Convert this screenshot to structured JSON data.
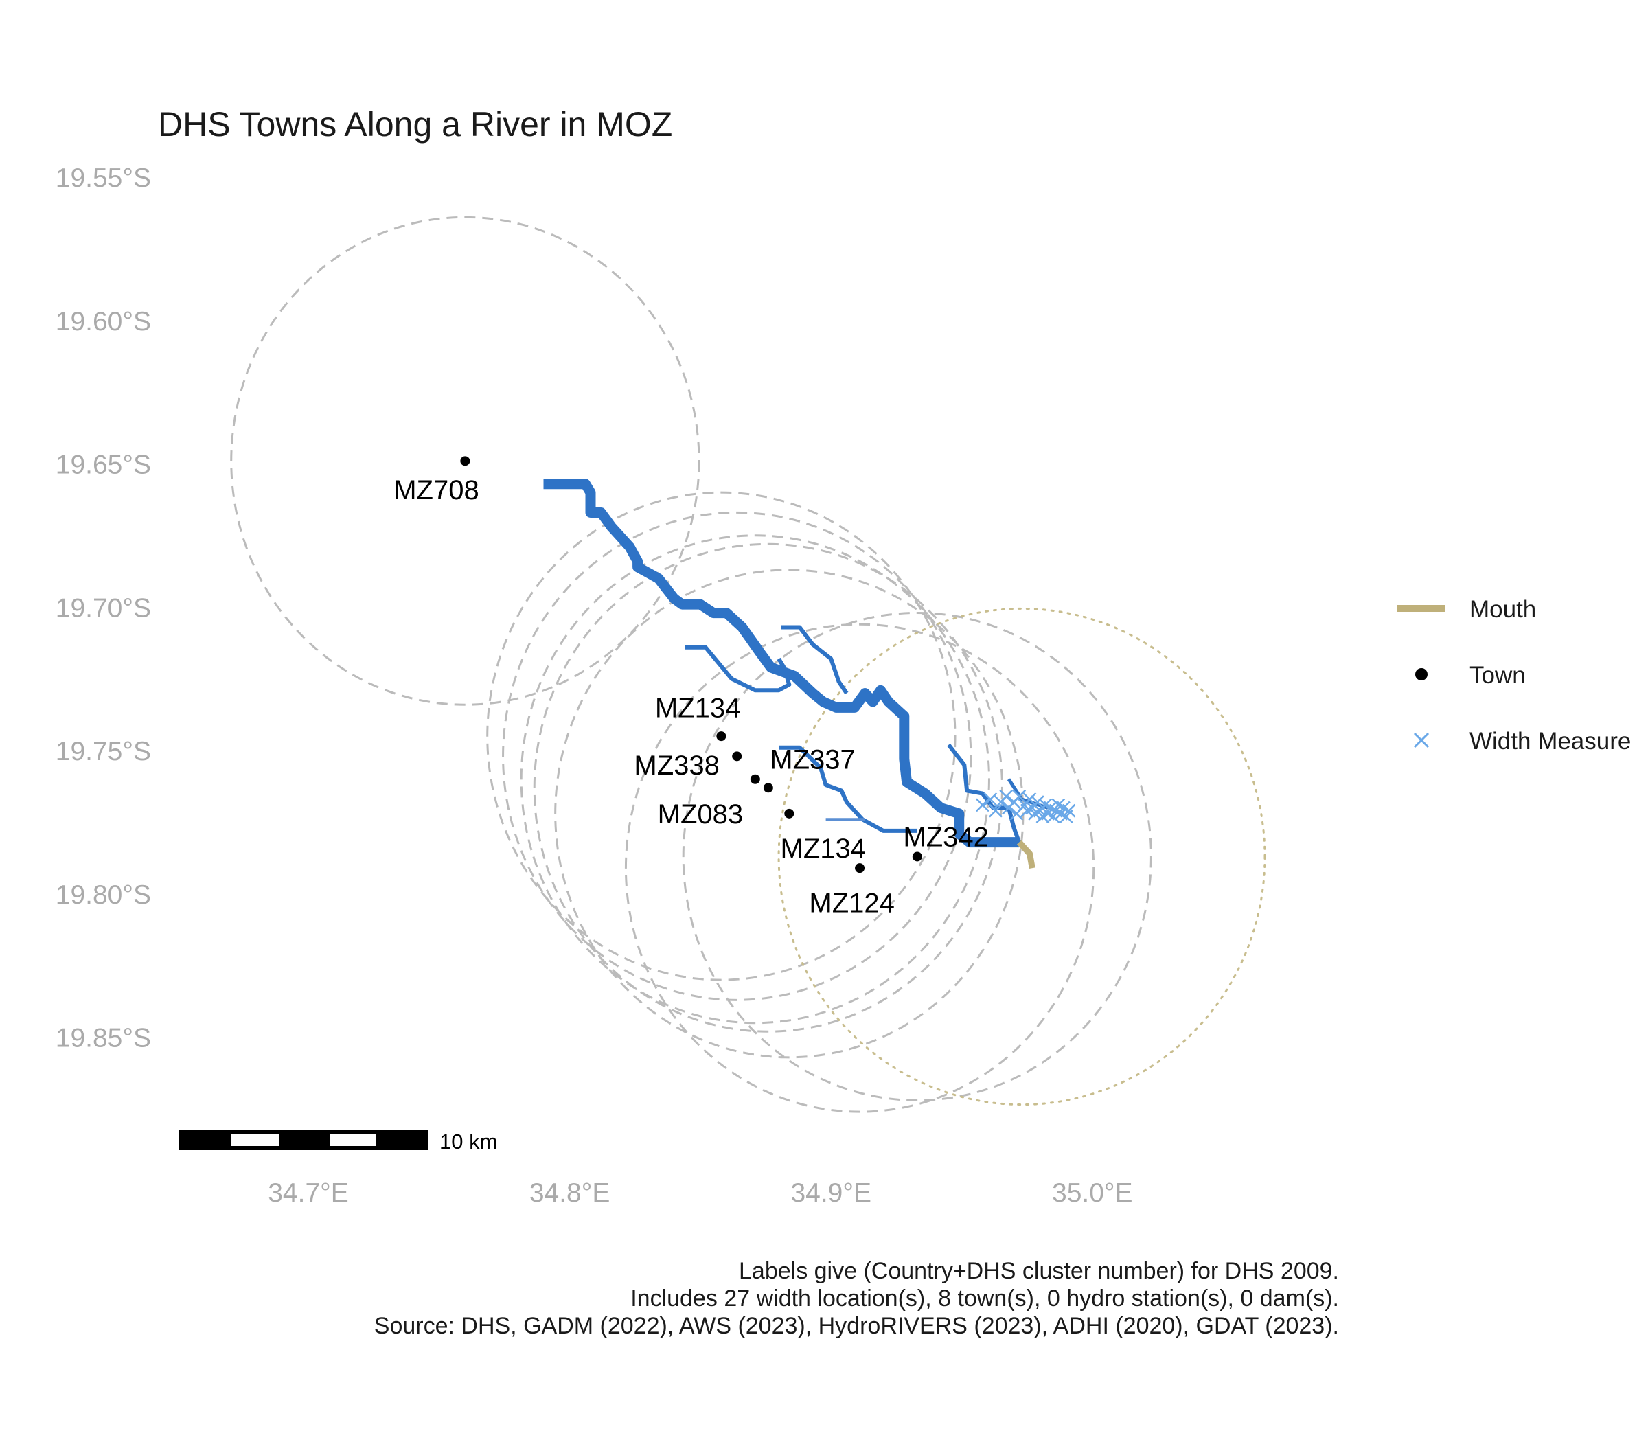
{
  "title": "DHS Towns Along a River in MOZ",
  "axes": {
    "x_ticks": [
      {
        "value": 34.7,
        "label": "34.7°E"
      },
      {
        "value": 34.8,
        "label": "34.8°E"
      },
      {
        "value": 34.9,
        "label": "34.9°E"
      },
      {
        "value": 35.0,
        "label": "35.0°E"
      }
    ],
    "y_ticks": [
      {
        "value": -19.55,
        "label": "19.55°S"
      },
      {
        "value": -19.6,
        "label": "19.60°S"
      },
      {
        "value": -19.65,
        "label": "19.65°S"
      },
      {
        "value": -19.7,
        "label": "19.70°S"
      },
      {
        "value": -19.75,
        "label": "19.75°S"
      },
      {
        "value": -19.8,
        "label": "19.80°S"
      },
      {
        "value": -19.85,
        "label": "19.85°S"
      }
    ]
  },
  "colors": {
    "river": "#2e73c6",
    "river_thin": "#5b8fd4",
    "mouth": "#bfb07a",
    "town": "#000000",
    "width_measure": "#6aa8e8",
    "buffer": "#bbbbbb",
    "mouth_buffer": "#c8bd8e"
  },
  "towns": [
    {
      "label": "MZ708",
      "lon": 34.76,
      "lat": -19.649,
      "label_lon": 34.749,
      "label_lat": -19.659
    },
    {
      "label": "MZ134",
      "lon": 34.858,
      "lat": -19.745,
      "label_lon": 34.849,
      "label_lat": -19.735
    },
    {
      "label": "MZ338",
      "lon": 34.864,
      "lat": -19.752,
      "label_lon": 34.841,
      "label_lat": -19.755
    },
    {
      "label": "MZ337",
      "lon": 34.871,
      "lat": -19.76,
      "label_lon": 34.893,
      "label_lat": -19.753
    },
    {
      "label": "MZ083",
      "lon": 34.876,
      "lat": -19.763,
      "label_lon": 34.85,
      "label_lat": -19.772
    },
    {
      "label": "MZ134",
      "lon": 34.884,
      "lat": -19.772,
      "label_lon": 34.897,
      "label_lat": -19.784
    },
    {
      "label": "MZ342",
      "lon": 34.933,
      "lat": -19.787,
      "label_lon": 34.944,
      "label_lat": -19.78
    },
    {
      "label": "MZ124",
      "lon": 34.911,
      "lat": -19.791,
      "label_lon": 34.908,
      "label_lat": -19.803
    }
  ],
  "buffers": [
    {
      "lon": 34.76,
      "lat": -19.649,
      "r": 0.0895
    },
    {
      "lon": 34.858,
      "lat": -19.745,
      "r": 0.0895
    },
    {
      "lon": 34.864,
      "lat": -19.752,
      "r": 0.0895
    },
    {
      "lon": 34.871,
      "lat": -19.76,
      "r": 0.0895
    },
    {
      "lon": 34.876,
      "lat": -19.763,
      "r": 0.0895
    },
    {
      "lon": 34.884,
      "lat": -19.772,
      "r": 0.0895
    },
    {
      "lon": 34.933,
      "lat": -19.787,
      "r": 0.0895
    },
    {
      "lon": 34.911,
      "lat": -19.791,
      "r": 0.0895
    }
  ],
  "mouth_buffer": {
    "lon": 34.973,
    "lat": -19.787,
    "r": 0.093
  },
  "river_main": [
    [
      34.79,
      -19.657
    ],
    [
      34.793,
      -19.657
    ],
    [
      34.806,
      -19.657
    ],
    [
      34.808,
      -19.66
    ],
    [
      34.808,
      -19.667
    ],
    [
      34.812,
      -19.667
    ],
    [
      34.816,
      -19.672
    ],
    [
      34.823,
      -19.679
    ],
    [
      34.826,
      -19.684
    ],
    [
      34.826,
      -19.686
    ],
    [
      34.83,
      -19.688
    ],
    [
      34.834,
      -19.69
    ],
    [
      34.84,
      -19.697
    ],
    [
      34.843,
      -19.699
    ],
    [
      34.85,
      -19.699
    ],
    [
      34.855,
      -19.702
    ],
    [
      34.86,
      -19.702
    ],
    [
      34.866,
      -19.707
    ],
    [
      34.873,
      -19.716
    ],
    [
      34.877,
      -19.721
    ],
    [
      34.88,
      -19.722
    ],
    [
      34.886,
      -19.724
    ],
    [
      34.893,
      -19.73
    ],
    [
      34.897,
      -19.733
    ],
    [
      34.902,
      -19.735
    ],
    [
      34.909,
      -19.735
    ],
    [
      34.913,
      -19.73
    ],
    [
      34.916,
      -19.733
    ],
    [
      34.919,
      -19.729
    ],
    [
      34.922,
      -19.733
    ],
    [
      34.928,
      -19.738
    ],
    [
      34.928,
      -19.753
    ],
    [
      34.929,
      -19.761
    ],
    [
      34.936,
      -19.765
    ],
    [
      34.942,
      -19.77
    ],
    [
      34.949,
      -19.772
    ],
    [
      34.949,
      -19.779
    ],
    [
      34.953,
      -19.782
    ],
    [
      34.964,
      -19.782
    ],
    [
      34.972,
      -19.782
    ]
  ],
  "river_trib_west": [
    [
      34.844,
      -19.714
    ],
    [
      34.852,
      -19.714
    ],
    [
      34.862,
      -19.725
    ],
    [
      34.871,
      -19.729
    ],
    [
      34.88,
      -19.729
    ],
    [
      34.884,
      -19.727
    ],
    [
      34.882,
      -19.721
    ],
    [
      34.88,
      -19.718
    ]
  ],
  "river_trib_north": [
    [
      34.881,
      -19.707
    ],
    [
      34.888,
      -19.707
    ],
    [
      34.893,
      -19.713
    ],
    [
      34.9,
      -19.718
    ],
    [
      34.903,
      -19.726
    ],
    [
      34.906,
      -19.73
    ]
  ],
  "river_trib_mid": [
    [
      34.88,
      -19.749
    ],
    [
      34.888,
      -19.749
    ],
    [
      34.896,
      -19.756
    ],
    [
      34.898,
      -19.762
    ],
    [
      34.904,
      -19.764
    ],
    [
      34.906,
      -19.768
    ],
    [
      34.912,
      -19.774
    ],
    [
      34.92,
      -19.778
    ],
    [
      34.933,
      -19.778
    ]
  ],
  "river_trib_east": [
    [
      34.945,
      -19.748
    ],
    [
      34.951,
      -19.755
    ],
    [
      34.952,
      -19.764
    ],
    [
      34.958,
      -19.765
    ],
    [
      34.962,
      -19.77
    ],
    [
      34.968,
      -19.77
    ],
    [
      34.97,
      -19.777
    ],
    [
      34.972,
      -19.782
    ]
  ],
  "river_short_branch": [
    [
      34.898,
      -19.774
    ],
    [
      34.913,
      -19.774
    ]
  ],
  "river_trib_east2": [
    [
      34.968,
      -19.76
    ],
    [
      34.973,
      -19.767
    ],
    [
      34.983,
      -19.77
    ]
  ],
  "mouth_segment": [
    [
      34.972,
      -19.782
    ],
    [
      34.976,
      -19.786
    ],
    [
      34.977,
      -19.791
    ]
  ],
  "width_measures": [
    [
      34.958,
      -19.769
    ],
    [
      34.961,
      -19.767
    ],
    [
      34.963,
      -19.771
    ],
    [
      34.965,
      -19.768
    ],
    [
      34.967,
      -19.766
    ],
    [
      34.968,
      -19.77
    ],
    [
      34.97,
      -19.768
    ],
    [
      34.971,
      -19.772
    ],
    [
      34.972,
      -19.766
    ],
    [
      34.974,
      -19.769
    ],
    [
      34.975,
      -19.771
    ],
    [
      34.976,
      -19.767
    ],
    [
      34.977,
      -19.77
    ],
    [
      34.978,
      -19.772
    ],
    [
      34.979,
      -19.768
    ],
    [
      34.98,
      -19.771
    ],
    [
      34.981,
      -19.773
    ],
    [
      34.982,
      -19.769
    ],
    [
      34.983,
      -19.772
    ],
    [
      34.984,
      -19.77
    ],
    [
      34.985,
      -19.773
    ],
    [
      34.986,
      -19.771
    ],
    [
      34.987,
      -19.769
    ],
    [
      34.988,
      -19.772
    ],
    [
      34.989,
      -19.77
    ],
    [
      34.99,
      -19.773
    ],
    [
      34.991,
      -19.771
    ]
  ],
  "legend": {
    "mouth": "Mouth",
    "town": "Town",
    "width": "Width Measure"
  },
  "scalebar": {
    "label": "10 km",
    "segments": 5
  },
  "caption": [
    "Labels give (Country+DHS cluster number) for DHS 2009.",
    "Includes 27 width location(s), 8 town(s), 0 hydro station(s), 0 dam(s).",
    "Source: DHS, GADM (2022), AWS (2023), HydroRIVERS (2023), ADHI (2020), GDAT (2023)."
  ]
}
